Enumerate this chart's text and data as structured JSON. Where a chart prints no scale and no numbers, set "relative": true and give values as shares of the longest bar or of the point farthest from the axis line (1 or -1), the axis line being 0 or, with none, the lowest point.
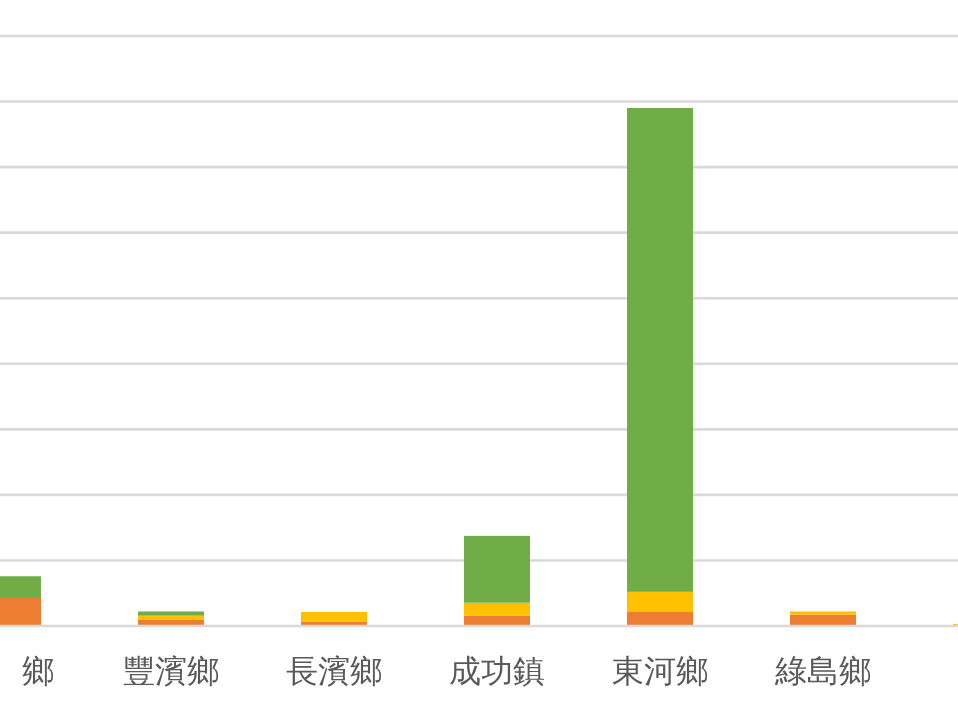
{
  "chart_data": {
    "type": "bar",
    "stacked": true,
    "relative": true,
    "grid": "y",
    "categories": [
      "鄉",
      "豐濱鄉",
      "長濱鄉",
      "成功鎮",
      "東河鄉",
      "綠島鄉",
      null
    ],
    "series": [
      {
        "color": "#ed7d31",
        "values": [
          0.054,
          0.012,
          0.008,
          0.02,
          0.027,
          0.022,
          0
        ]
      },
      {
        "color": "#ffc000",
        "values": [
          0,
          0.008,
          0.019,
          0.025,
          0.039,
          0.006,
          0.004
        ]
      },
      {
        "color": "#70ad47",
        "values": [
          0.042,
          0.008,
          0,
          0.129,
          0.934,
          0,
          0
        ]
      }
    ]
  }
}
